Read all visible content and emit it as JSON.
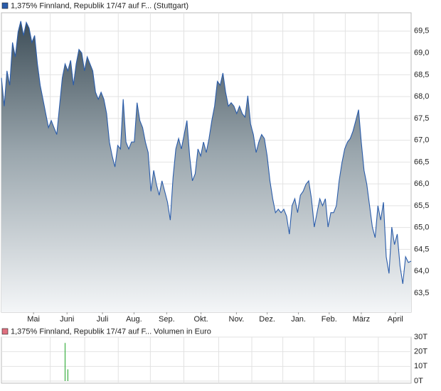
{
  "chart_data": [
    {
      "type": "area",
      "series": [
        {
          "name": "1,375% Finnland, Republik 17/47 auf F... (Stuttgart)",
          "color": "#2a5caa",
          "values": [
            68.43,
            67.78,
            68.59,
            68.26,
            69.24,
            68.91,
            69.48,
            69.73,
            69.4,
            69.7,
            69.57,
            69.24,
            69.4,
            68.75,
            68.26,
            67.94,
            67.61,
            67.29,
            67.45,
            67.29,
            67.13,
            67.78,
            68.43,
            68.75,
            68.59,
            68.83,
            68.26,
            68.75,
            69.08,
            69.0,
            68.59,
            68.91,
            68.75,
            68.59,
            68.1,
            67.94,
            68.1,
            67.94,
            67.61,
            66.96,
            66.64,
            66.39,
            66.88,
            66.8,
            67.94,
            66.96,
            66.8,
            66.96,
            66.96,
            67.86,
            67.45,
            67.29,
            66.96,
            66.72,
            65.83,
            66.31,
            65.99,
            65.74,
            66.07,
            65.83,
            65.58,
            65.17,
            66.15,
            66.8,
            67.04,
            66.8,
            67.13,
            67.45,
            66.64,
            66.07,
            66.23,
            66.8,
            66.64,
            66.96,
            66.72,
            67.04,
            67.45,
            67.78,
            68.35,
            68.26,
            68.54,
            68.1,
            67.78,
            67.86,
            67.78,
            67.61,
            67.78,
            67.61,
            67.53,
            68.02,
            67.37,
            67.13,
            66.72,
            66.96,
            67.13,
            67.04,
            66.64,
            66.07,
            65.66,
            65.34,
            65.42,
            65.34,
            65.42,
            65.26,
            64.85,
            65.5,
            65.66,
            65.34,
            65.74,
            65.83,
            65.99,
            66.07,
            65.66,
            65.01,
            65.34,
            65.66,
            65.5,
            65.66,
            65.01,
            65.34,
            65.34,
            65.5,
            66.07,
            66.48,
            66.8,
            66.96,
            67.04,
            67.21,
            67.45,
            67.7,
            66.96,
            66.31,
            65.99,
            65.5,
            65.01,
            64.77,
            65.5,
            65.17,
            65.58,
            64.33,
            63.95,
            65.01,
            64.61,
            64.85,
            64.12,
            63.71,
            64.33,
            64.2,
            64.23
          ]
        }
      ],
      "xlim": [
        0,
        148
      ],
      "xticks": [
        {
          "value": 11.6,
          "label": "Mai"
        },
        {
          "value": 23.7,
          "label": "Juni"
        },
        {
          "value": 36.5,
          "label": "Juli"
        },
        {
          "value": 47.9,
          "label": "Aug."
        },
        {
          "value": 59.7,
          "label": "Sep."
        },
        {
          "value": 72.1,
          "label": "Okt."
        },
        {
          "value": 84.9,
          "label": "Nov."
        },
        {
          "value": 96.0,
          "label": "Dez."
        },
        {
          "value": 107.3,
          "label": "Jan."
        },
        {
          "value": 118.4,
          "label": "Feb."
        },
        {
          "value": 130.0,
          "label": "März"
        },
        {
          "value": 142.3,
          "label": "April"
        }
      ],
      "ylim": [
        63.06,
        69.92
      ],
      "yticks": [
        {
          "value": 63.5,
          "label": "63,5"
        },
        {
          "value": 64,
          "label": "64,0"
        },
        {
          "value": 64.5,
          "label": "64,5"
        },
        {
          "value": 65,
          "label": "65,0"
        },
        {
          "value": 65.5,
          "label": "65,5"
        },
        {
          "value": 66,
          "label": "66,0"
        },
        {
          "value": 66.5,
          "label": "66,5"
        },
        {
          "value": 67,
          "label": "67,0"
        },
        {
          "value": 67.5,
          "label": "67,5"
        },
        {
          "value": 68,
          "label": "68,0"
        },
        {
          "value": 68.5,
          "label": "68,5"
        },
        {
          "value": 69,
          "label": "69,0"
        },
        {
          "value": 69.5,
          "label": "69,5"
        }
      ],
      "grid": true
    },
    {
      "type": "bar",
      "series": [
        {
          "name": "1,375% Finnland, Republik 17/47 auf F... Volumen in Euro",
          "color": "#3cb043",
          "x": [
            23,
            24
          ],
          "values": [
            26000,
            8000
          ]
        }
      ],
      "xlim": [
        0,
        148
      ],
      "ylim": [
        -1450,
        30000
      ],
      "yticks": [
        {
          "value": 0,
          "label": "0T"
        },
        {
          "value": 10000,
          "label": "10T"
        },
        {
          "value": 20000,
          "label": "20T"
        },
        {
          "value": 30000,
          "label": "30T"
        }
      ],
      "grid": true
    }
  ]
}
